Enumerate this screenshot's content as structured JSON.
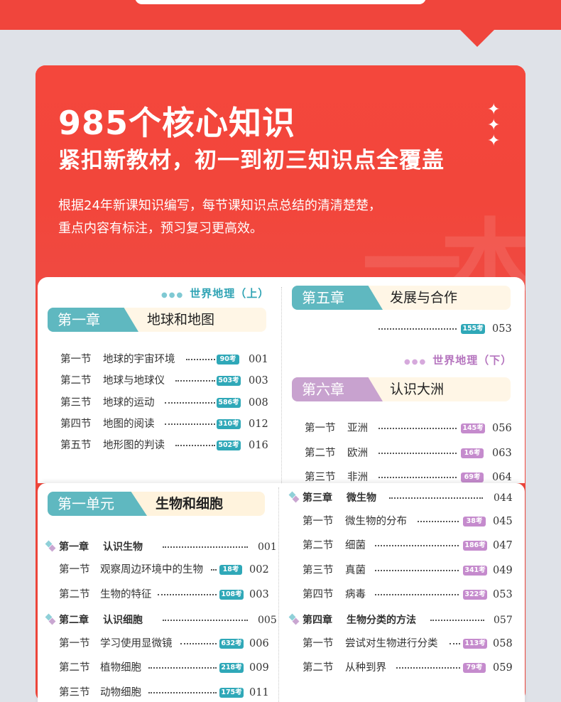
{
  "hero": {
    "title": "985个核心知识",
    "subtitle": "紧扣新教材，初一到初三知识点全覆盖",
    "desc_line1": "根据24年新课知识编写，每节课知识点总结的清清楚楚，",
    "desc_line2": "重点内容有标注，预习复习更高效。",
    "sparkles": "✦"
  },
  "colors": {
    "red": "#f2473c",
    "teal": "#5fb8c0",
    "purple": "#c8a2cf"
  },
  "geo_upper": {
    "volume": "世界地理（上）",
    "chapter_tag": "第一章",
    "chapter_name": "地球和地图",
    "rows": [
      {
        "sec": "第一节",
        "name": "地球的宇宙环境",
        "badge": "90考",
        "page": "001"
      },
      {
        "sec": "第二节",
        "name": "地球与地球仪",
        "badge": "503考",
        "page": "003"
      },
      {
        "sec": "第三节",
        "name": "地球的运动",
        "badge": "586考",
        "page": "008"
      },
      {
        "sec": "第四节",
        "name": "地图的阅读",
        "badge": "310考",
        "page": "012"
      },
      {
        "sec": "第五节",
        "name": "地形图的判读",
        "badge": "502考",
        "page": "016"
      }
    ]
  },
  "geo_right": {
    "chapter5_tag": "第五章",
    "chapter5_name": "发展与合作",
    "chapter5_row": {
      "badge": "155考",
      "page": "053"
    },
    "volume": "世界地理（下）",
    "chapter6_tag": "第六章",
    "chapter6_name": "认识大洲",
    "rows": [
      {
        "sec": "第一节",
        "name": "亚洲",
        "badge": "145考",
        "page": "056"
      },
      {
        "sec": "第二节",
        "name": "欧洲",
        "badge": "16考",
        "page": "063"
      },
      {
        "sec": "第三节",
        "name": "非洲",
        "badge": "69考",
        "page": "064"
      }
    ]
  },
  "bio_left": {
    "unit_tag": "第一单元",
    "unit_name": "生物和细胞",
    "ch1": {
      "chap": "第一章",
      "name": "认识生物",
      "page": "001"
    },
    "ch1_rows": [
      {
        "sec": "第一节",
        "name": "观察周边环境中的生物",
        "badge": "18考",
        "page": "002"
      },
      {
        "sec": "第二节",
        "name": "生物的特征",
        "badge": "108考",
        "page": "003"
      }
    ],
    "ch2": {
      "chap": "第二章",
      "name": "认识细胞",
      "page": "005"
    },
    "ch2_rows": [
      {
        "sec": "第一节",
        "name": "学习使用显微镜",
        "badge": "632考",
        "page": "006"
      },
      {
        "sec": "第二节",
        "name": "植物细胞",
        "badge": "218考",
        "page": "009"
      },
      {
        "sec": "第三节",
        "name": "动物细胞",
        "badge": "175考",
        "page": "011"
      }
    ]
  },
  "bio_right": {
    "ch3": {
      "chap": "第三章",
      "name": "微生物",
      "page": "044"
    },
    "ch3_rows": [
      {
        "sec": "第一节",
        "name": "微生物的分布",
        "badge": "38考",
        "page": "045"
      },
      {
        "sec": "第二节",
        "name": "细菌",
        "badge": "186考",
        "page": "047"
      },
      {
        "sec": "第三节",
        "name": "真菌",
        "badge": "341考",
        "page": "049"
      },
      {
        "sec": "第四节",
        "name": "病毒",
        "badge": "322考",
        "page": "053"
      }
    ],
    "ch4": {
      "chap": "第四章",
      "name": "生物分类的方法",
      "page": "057"
    },
    "ch4_rows": [
      {
        "sec": "第一节",
        "name": "尝试对生物进行分类",
        "badge": "113考",
        "page": "058"
      },
      {
        "sec": "第二节",
        "name": "从种到界",
        "badge": "79考",
        "page": "059"
      }
    ]
  }
}
